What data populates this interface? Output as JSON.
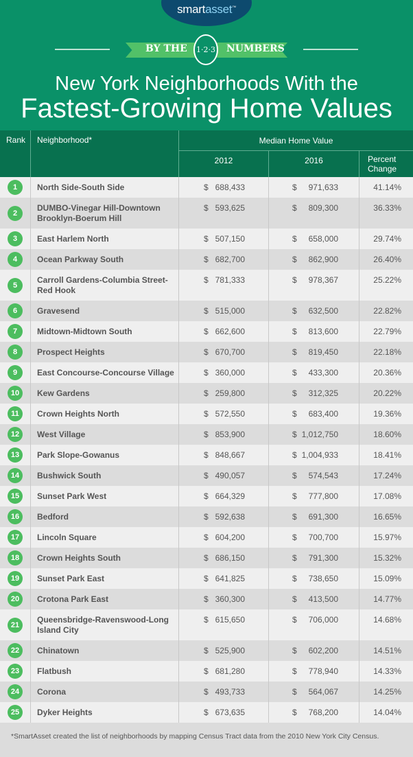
{
  "brand": {
    "logo_part1": "smart",
    "logo_part2": "asset",
    "logo_tm": "™"
  },
  "banner": {
    "left": "BY THE",
    "badge": "1·2·3",
    "right": "NUMBERS"
  },
  "title": {
    "line1": "New York Neighborhoods With the",
    "line2": "Fastest-Growing Home Values"
  },
  "colors": {
    "background": "#0a9168",
    "header": "#08714f",
    "badge": "#4cbd5f",
    "logo": "#0d4a6e",
    "row_light": "#efefef",
    "row_dark": "#dcdcdc"
  },
  "chart_data": {
    "type": "table",
    "columns": {
      "rank": "Rank",
      "neighborhood": "Neighborhood*",
      "group": "Median Home Value",
      "y2012": "2012",
      "y2016": "2016",
      "pct": "Percent Change"
    },
    "currency": "$",
    "rows": [
      {
        "rank": "1",
        "name": "North Side-South Side",
        "v2012": "688,433",
        "v2016": "971,633",
        "pct": "41.14%"
      },
      {
        "rank": "2",
        "name": "DUMBO-Vinegar Hill-Downtown Brooklyn-Boerum Hill",
        "v2012": "593,625",
        "v2016": "809,300",
        "pct": "36.33%"
      },
      {
        "rank": "3",
        "name": "East Harlem North",
        "v2012": "507,150",
        "v2016": "658,000",
        "pct": "29.74%"
      },
      {
        "rank": "4",
        "name": "Ocean Parkway South",
        "v2012": "682,700",
        "v2016": "862,900",
        "pct": "26.40%"
      },
      {
        "rank": "5",
        "name": "Carroll Gardens-Columbia Street-Red Hook",
        "v2012": "781,333",
        "v2016": "978,367",
        "pct": "25.22%"
      },
      {
        "rank": "6",
        "name": "Gravesend",
        "v2012": "515,000",
        "v2016": "632,500",
        "pct": "22.82%"
      },
      {
        "rank": "7",
        "name": "Midtown-Midtown South",
        "v2012": "662,600",
        "v2016": "813,600",
        "pct": "22.79%"
      },
      {
        "rank": "8",
        "name": "Prospect Heights",
        "v2012": "670,700",
        "v2016": "819,450",
        "pct": "22.18%"
      },
      {
        "rank": "9",
        "name": "East Concourse-Concourse Village",
        "v2012": "360,000",
        "v2016": "433,300",
        "pct": "20.36%"
      },
      {
        "rank": "10",
        "name": "Kew Gardens",
        "v2012": "259,800",
        "v2016": "312,325",
        "pct": "20.22%"
      },
      {
        "rank": "11",
        "name": "Crown Heights North",
        "v2012": "572,550",
        "v2016": "683,400",
        "pct": "19.36%"
      },
      {
        "rank": "12",
        "name": "West Village",
        "v2012": "853,900",
        "v2016": "1,012,750",
        "pct": "18.60%"
      },
      {
        "rank": "13",
        "name": "Park Slope-Gowanus",
        "v2012": "848,667",
        "v2016": "1,004,933",
        "pct": "18.41%"
      },
      {
        "rank": "14",
        "name": "Bushwick South",
        "v2012": "490,057",
        "v2016": "574,543",
        "pct": "17.24%"
      },
      {
        "rank": "15",
        "name": "Sunset Park West",
        "v2012": "664,329",
        "v2016": "777,800",
        "pct": "17.08%"
      },
      {
        "rank": "16",
        "name": "Bedford",
        "v2012": "592,638",
        "v2016": "691,300",
        "pct": "16.65%"
      },
      {
        "rank": "17",
        "name": "Lincoln Square",
        "v2012": "604,200",
        "v2016": "700,700",
        "pct": "15.97%"
      },
      {
        "rank": "18",
        "name": "Crown Heights South",
        "v2012": "686,150",
        "v2016": "791,300",
        "pct": "15.32%"
      },
      {
        "rank": "19",
        "name": "Sunset Park East",
        "v2012": "641,825",
        "v2016": "738,650",
        "pct": "15.09%"
      },
      {
        "rank": "20",
        "name": "Crotona Park East",
        "v2012": "360,300",
        "v2016": "413,500",
        "pct": "14.77%"
      },
      {
        "rank": "21",
        "name": "Queensbridge-Ravenswood-Long Island City",
        "v2012": "615,650",
        "v2016": "706,000",
        "pct": "14.68%"
      },
      {
        "rank": "22",
        "name": "Chinatown",
        "v2012": "525,900",
        "v2016": "602,200",
        "pct": "14.51%"
      },
      {
        "rank": "23",
        "name": "Flatbush",
        "v2012": "681,280",
        "v2016": "778,940",
        "pct": "14.33%"
      },
      {
        "rank": "24",
        "name": "Corona",
        "v2012": "493,733",
        "v2016": "564,067",
        "pct": "14.25%"
      },
      {
        "rank": "25",
        "name": "Dyker Heights",
        "v2012": "673,635",
        "v2016": "768,200",
        "pct": "14.04%"
      }
    ]
  },
  "footnote": "*SmartAsset created the list of neighborhoods by mapping Census Tract data from the 2010 New York City Census."
}
